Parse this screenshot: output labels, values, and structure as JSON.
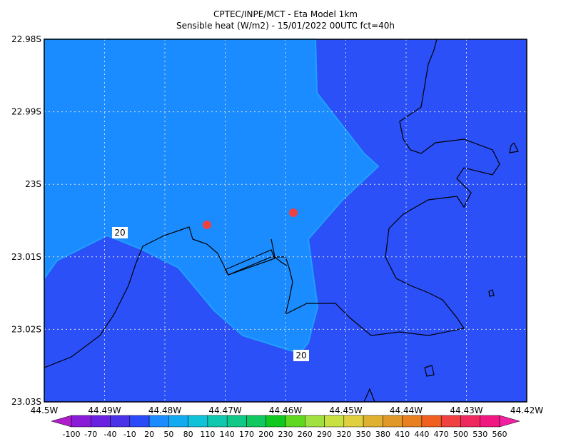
{
  "header": {
    "title": "CPTEC/INPE/MCT -  Eta Model 1km",
    "subtitle": "Sensible heat (W/m2) - 15/01/2022 00UTC fct=40h"
  },
  "lat_ticks": [
    "22.98S",
    "22.99S",
    "23S",
    "23.01S",
    "23.02S",
    "23.03S"
  ],
  "lon_ticks": [
    "44.5W",
    "44.49W",
    "44.48W",
    "44.47W",
    "44.46W",
    "44.45W",
    "44.44W",
    "44.43W",
    "44.42W"
  ],
  "contour_labels": [
    "20",
    "20"
  ],
  "colorbar": {
    "labels": [
      "-100",
      "-70",
      "-40",
      "-10",
      "20",
      "50",
      "80",
      "110",
      "140",
      "170",
      "200",
      "230",
      "260",
      "290",
      "320",
      "350",
      "380",
      "410",
      "440",
      "470",
      "500",
      "530",
      "560"
    ],
    "colors": [
      "#b01ccc",
      "#8a1cd8",
      "#6a22e0",
      "#4a32e8",
      "#2a4bf8",
      "#1a8cff",
      "#12aaf0",
      "#10c2d8",
      "#10c8b0",
      "#10c888",
      "#10c860",
      "#10c820",
      "#60d820",
      "#a0e040",
      "#c8e040",
      "#e0d040",
      "#e0b030",
      "#e09828",
      "#e88020",
      "#f06020",
      "#f04040",
      "#f02860",
      "#f01880",
      "#f020a0"
    ]
  }
}
